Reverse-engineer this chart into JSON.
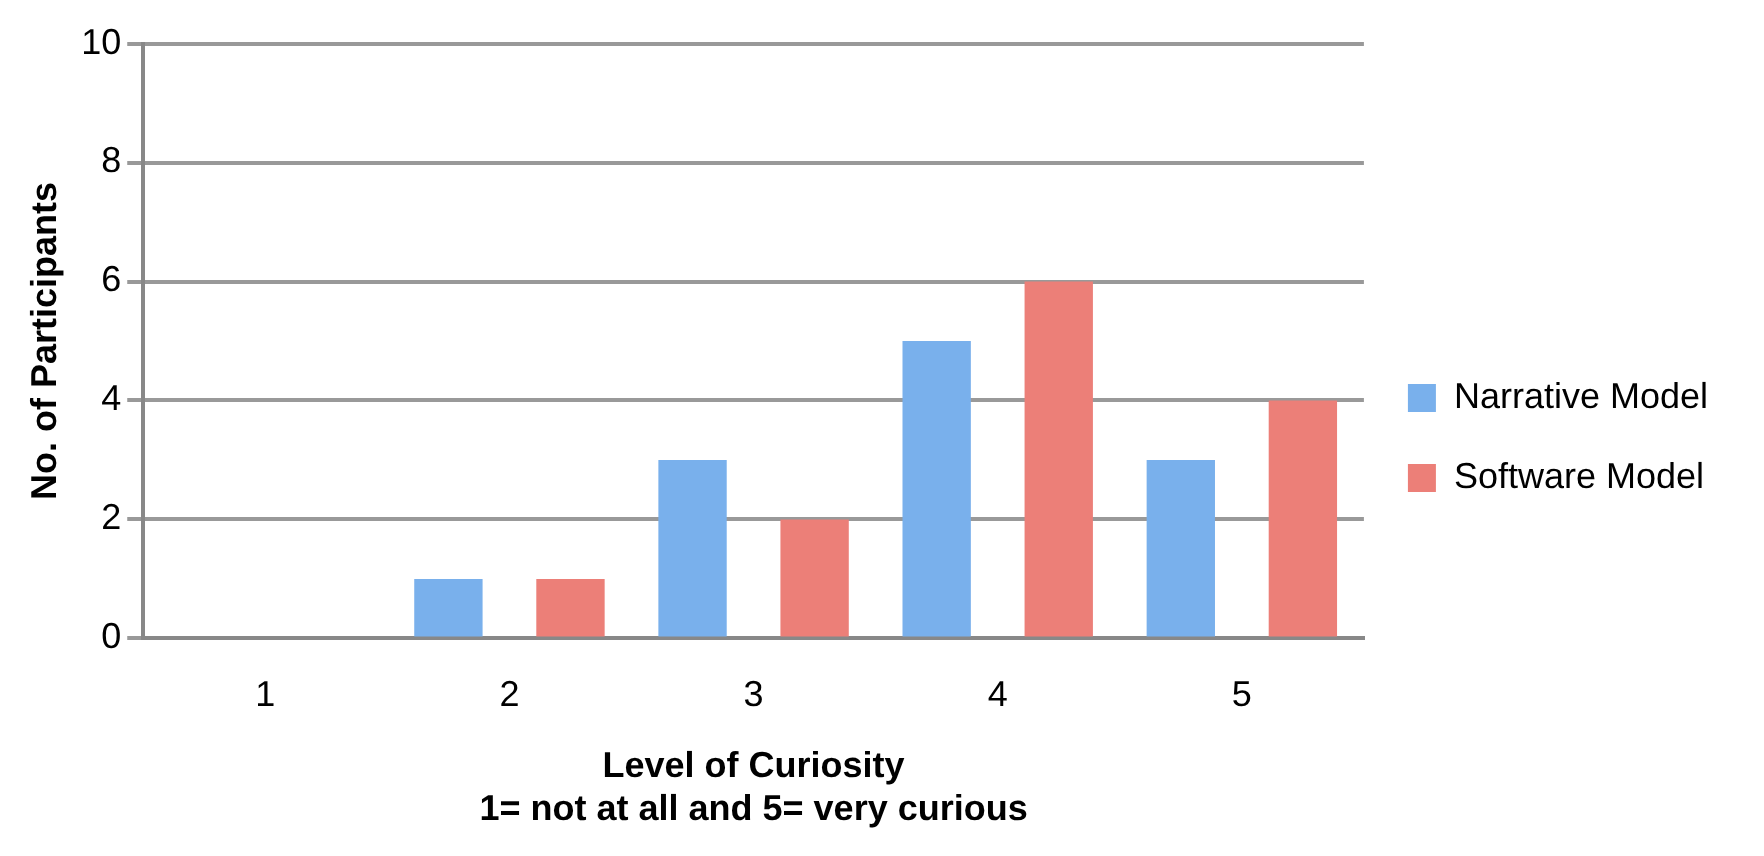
{
  "chart_data": {
    "type": "bar",
    "xlabel": "Level of Curiosity\n1= not at all and 5= very curious",
    "ylabel": "No. of Participants",
    "categories": [
      "1",
      "2",
      "3",
      "4",
      "5"
    ],
    "series": [
      {
        "name": "Narrative Model",
        "color": "#79b0ec",
        "values": [
          0,
          1,
          3,
          5,
          3
        ]
      },
      {
        "name": "Software Model",
        "color": "#ec7f78",
        "values": [
          0,
          1,
          2,
          6,
          4
        ]
      }
    ],
    "ylim": [
      0,
      10
    ],
    "yticks": [
      0,
      2,
      4,
      6,
      8,
      10
    ],
    "grid": "y",
    "legend": "right"
  }
}
